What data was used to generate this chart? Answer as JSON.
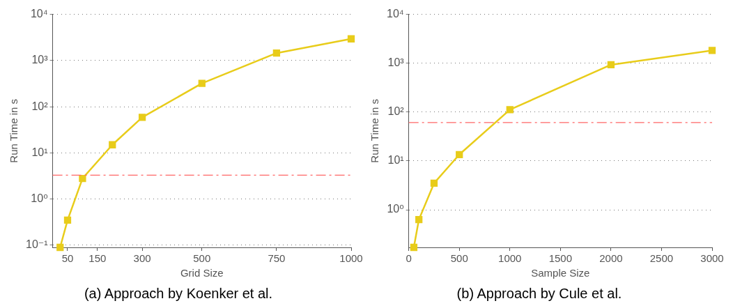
{
  "chart_data": [
    {
      "type": "line",
      "title": "(a) Approach by Koenker et al.",
      "xlabel": "Grid Size",
      "ylabel": "Run Time in s",
      "x": [
        25,
        50,
        100,
        200,
        300,
        500,
        750,
        1000
      ],
      "series": [
        {
          "color": "#e8cc1a",
          "values": [
            0.09,
            0.35,
            2.8,
            15,
            59,
            320,
            1450,
            2950
          ]
        }
      ],
      "xlim": [
        0,
        1000
      ],
      "xticks": [
        50,
        150,
        300,
        500,
        750,
        1000
      ],
      "ylim": [
        0.09,
        10000
      ],
      "yticks": [
        {
          "value": 0.1,
          "label": "10⁻¹"
        },
        {
          "value": 1,
          "label": "10⁰"
        },
        {
          "value": 10,
          "label": "10¹"
        },
        {
          "value": 100,
          "label": "10²"
        },
        {
          "value": 1000,
          "label": "10³"
        },
        {
          "value": 10000,
          "label": "10⁴"
        }
      ],
      "log": "y",
      "grid": "y",
      "marker": "square",
      "line_style": "solid",
      "legend": false,
      "ref_lines": [
        {
          "axis": "y",
          "value": 3.3,
          "color": "#ff6666",
          "line_style": "dashed"
        }
      ]
    },
    {
      "type": "line",
      "title": "(b) Approach by Cule et al.",
      "xlabel": "Sample Size",
      "ylabel": "Run Time in s",
      "x": [
        50,
        100,
        250,
        500,
        1000,
        2000,
        3000
      ],
      "series": [
        {
          "color": "#e8cc1a",
          "values": [
            0.17,
            0.63,
            3.5,
            13.5,
            112,
            930,
            1820
          ]
        }
      ],
      "xlim": [
        0,
        3000
      ],
      "xticks": [
        0,
        500,
        1000,
        1500,
        2000,
        2500,
        3000
      ],
      "ylim": [
        0.17,
        10000
      ],
      "yticks": [
        {
          "value": 1,
          "label": "10⁰"
        },
        {
          "value": 10,
          "label": "10¹"
        },
        {
          "value": 100,
          "label": "10²"
        },
        {
          "value": 1000,
          "label": "10³"
        },
        {
          "value": 10000,
          "label": "10⁴"
        }
      ],
      "log": "y",
      "grid": "y",
      "marker": "square",
      "line_style": "solid",
      "legend": false,
      "ref_lines": [
        {
          "axis": "y",
          "value": 61,
          "color": "#ff6666",
          "line_style": "dashed"
        }
      ]
    }
  ]
}
